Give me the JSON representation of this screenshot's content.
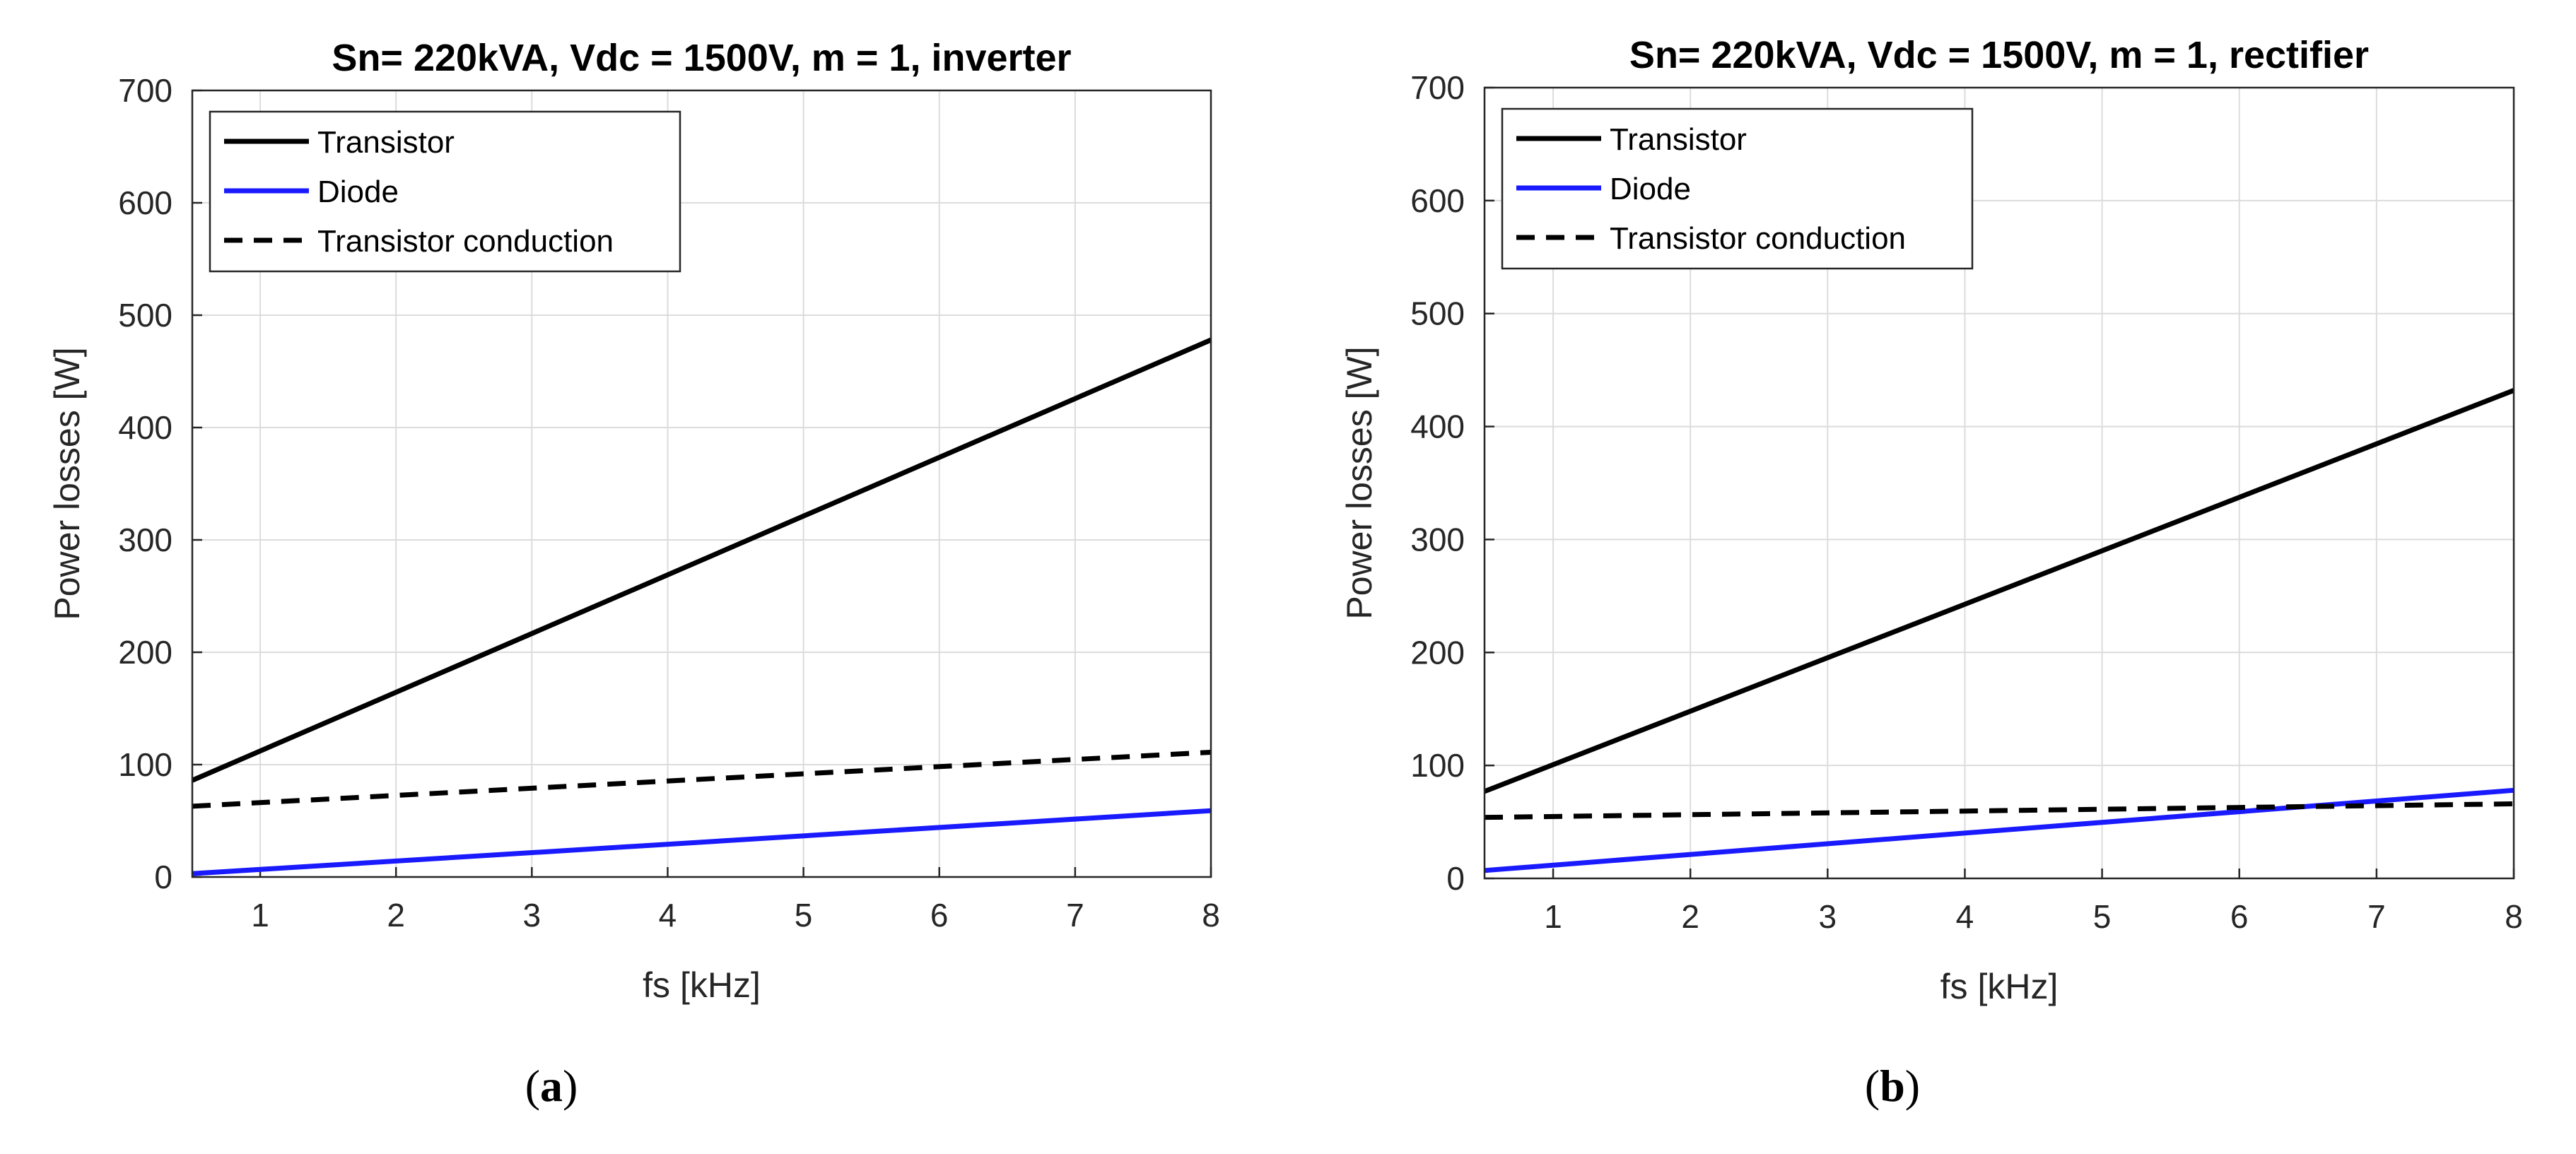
{
  "chart_data": [
    {
      "type": "line",
      "panel_label": "a",
      "title": "Sn= 220kVA, Vdc = 1500V, m = 1, inverter",
      "xlabel": "fs [kHz]",
      "ylabel": "Power losses [W]",
      "xlim": [
        0.5,
        8
      ],
      "ylim": [
        0,
        700
      ],
      "xticks": [
        1,
        2,
        3,
        4,
        5,
        6,
        7,
        8
      ],
      "yticks": [
        0,
        100,
        200,
        300,
        400,
        500,
        600,
        700
      ],
      "grid": true,
      "legend_position": "top-left",
      "series": [
        {
          "name": "Transistor",
          "color": "#000000",
          "style": "solid",
          "x": [
            0.5,
            8
          ],
          "y": [
            86,
            478
          ]
        },
        {
          "name": "Diode",
          "color": "#1a1aff",
          "style": "solid",
          "x": [
            0.5,
            8
          ],
          "y": [
            3,
            59
          ]
        },
        {
          "name": "Transistor conduction",
          "color": "#000000",
          "style": "dashed",
          "x": [
            0.5,
            8
          ],
          "y": [
            63,
            111
          ]
        }
      ]
    },
    {
      "type": "line",
      "panel_label": "b",
      "title": "Sn= 220kVA, Vdc = 1500V, m = 1, rectifier",
      "xlabel": "fs [kHz]",
      "ylabel": "Power losses [W]",
      "xlim": [
        0.5,
        8
      ],
      "ylim": [
        0,
        700
      ],
      "xticks": [
        1,
        2,
        3,
        4,
        5,
        6,
        7,
        8
      ],
      "yticks": [
        0,
        100,
        200,
        300,
        400,
        500,
        600,
        700
      ],
      "grid": true,
      "legend_position": "top-left",
      "series": [
        {
          "name": "Transistor",
          "color": "#000000",
          "style": "solid",
          "x": [
            0.5,
            8
          ],
          "y": [
            77,
            432
          ]
        },
        {
          "name": "Diode",
          "color": "#1a1aff",
          "style": "solid",
          "x": [
            0.5,
            8
          ],
          "y": [
            7,
            78
          ]
        },
        {
          "name": "Transistor conduction",
          "color": "#000000",
          "style": "dashed",
          "x": [
            0.5,
            8
          ],
          "y": [
            54,
            66
          ]
        }
      ]
    }
  ]
}
